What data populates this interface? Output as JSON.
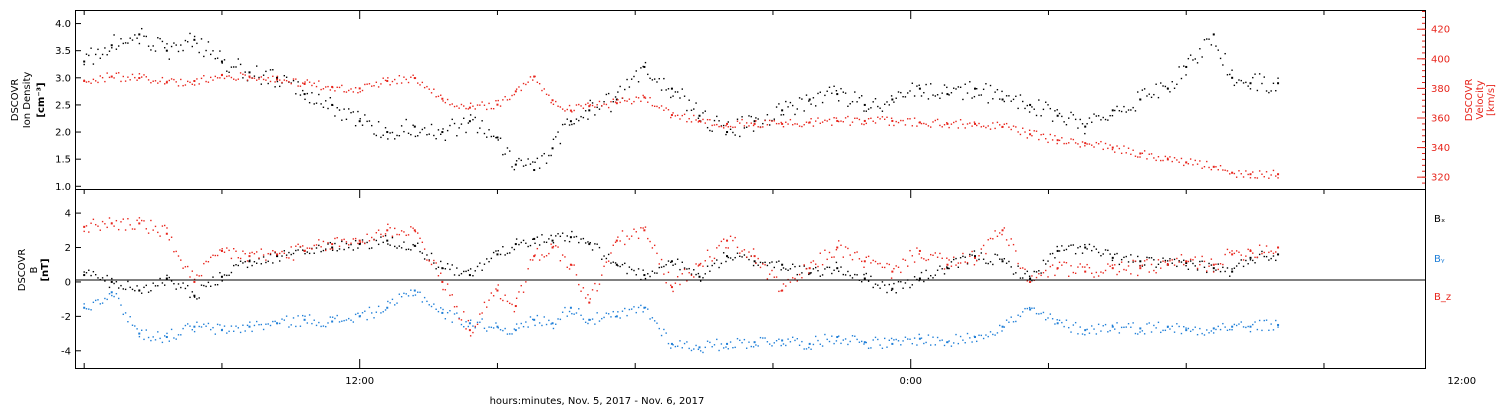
{
  "colors": {
    "frame": "#000000",
    "black_series": "#000000",
    "red_series": "#e8251c",
    "blue_series": "#1f7fd8"
  },
  "x_axis": {
    "caption": "hours:minutes, Nov.  5, 2017 - Nov.  6, 2017",
    "tick_labels": [
      "12:00",
      "0:00",
      "12:00"
    ],
    "tick_hours": [
      12,
      24,
      36
    ],
    "range_hours": [
      5.8,
      35.2
    ]
  },
  "chart_data": [
    {
      "type": "scatter",
      "panel": "top",
      "ylabel_lines": [
        "DSCOVR",
        "Ion Density"
      ],
      "ylabel_unit": "[cm⁻³]",
      "yticks": [
        "1.0",
        "1.5",
        "2.0",
        "2.5",
        "3.0",
        "3.5",
        "4.0"
      ],
      "ylim": [
        0.95,
        4.25
      ],
      "right_axis": {
        "ylabel_lines": [
          "DSCOVR",
          "Velocity"
        ],
        "ylabel_unit": "[km/s]",
        "yticks": [
          "320",
          "340",
          "360",
          "380",
          "400",
          "420"
        ],
        "ylim": [
          312,
          433
        ]
      },
      "series": [
        {
          "color": "black",
          "axis": "left",
          "x": [
            6.0,
            6.6,
            7.2,
            7.8,
            8.4,
            9.0,
            9.6,
            10.2,
            10.8,
            11.4,
            12.0,
            12.6,
            13.2,
            13.8,
            14.4,
            15.0,
            15.4,
            15.8,
            16.2,
            16.6,
            17.0,
            17.6,
            18.2,
            18.8,
            19.4,
            20.0,
            20.6,
            21.2,
            21.8,
            22.4,
            23.0,
            23.6,
            24.2,
            24.8,
            25.4,
            26.0,
            26.6,
            27.2,
            27.8,
            28.4,
            29.0,
            29.6,
            30.0,
            30.6,
            31.0,
            31.4,
            32.0
          ],
          "y": [
            3.3,
            3.6,
            3.8,
            3.5,
            3.7,
            3.3,
            3.1,
            3.0,
            2.7,
            2.5,
            2.2,
            2.0,
            2.1,
            2.0,
            2.2,
            1.9,
            1.4,
            1.3,
            1.7,
            2.2,
            2.4,
            2.6,
            3.2,
            2.8,
            2.3,
            2.0,
            2.2,
            2.4,
            2.6,
            2.7,
            2.5,
            2.6,
            2.8,
            2.7,
            2.8,
            2.6,
            2.5,
            2.3,
            2.1,
            2.4,
            2.6,
            2.8,
            3.2,
            3.8,
            3.0,
            2.9,
            2.9
          ]
        },
        {
          "color": "red",
          "axis": "right",
          "x": [
            6.0,
            6.6,
            7.2,
            7.8,
            8.4,
            9.0,
            9.6,
            10.2,
            10.8,
            11.4,
            12.0,
            12.6,
            13.2,
            13.8,
            14.4,
            15.0,
            15.4,
            15.8,
            16.2,
            16.6,
            17.0,
            17.6,
            18.2,
            18.8,
            19.4,
            20.0,
            20.6,
            21.2,
            21.8,
            22.4,
            23.0,
            23.6,
            24.2,
            24.8,
            25.4,
            26.0,
            26.6,
            27.2,
            27.8,
            28.4,
            29.0,
            29.6,
            30.0,
            30.6,
            31.0,
            31.4,
            32.0
          ],
          "y": [
            385,
            388,
            387,
            384,
            385,
            389,
            388,
            386,
            383,
            381,
            380,
            385,
            387,
            373,
            367,
            369,
            378,
            388,
            372,
            365,
            368,
            370,
            374,
            362,
            358,
            356,
            356,
            356,
            357,
            358,
            358,
            358,
            357,
            356,
            356,
            354,
            349,
            345,
            343,
            340,
            336,
            332,
            330,
            327,
            323,
            322,
            322
          ]
        }
      ]
    },
    {
      "type": "scatter",
      "panel": "bottom",
      "ylabel_lines": [
        "DSCOVR",
        "B"
      ],
      "ylabel_unit": "[nT]",
      "yticks": [
        "-4",
        "-2",
        "0",
        "2",
        "4"
      ],
      "ylim": [
        -5.0,
        5.4
      ],
      "zero_line": true,
      "legend_position": "right",
      "series": [
        {
          "name": "Bₓ",
          "color": "black",
          "x": [
            6.0,
            6.6,
            7.2,
            7.8,
            8.4,
            9.0,
            9.6,
            10.2,
            10.8,
            11.4,
            12.0,
            12.6,
            13.2,
            13.8,
            14.4,
            15.0,
            15.4,
            15.8,
            16.2,
            16.6,
            17.0,
            17.6,
            18.2,
            18.8,
            19.4,
            20.0,
            20.6,
            21.2,
            21.8,
            22.4,
            23.0,
            23.6,
            24.2,
            24.8,
            25.4,
            26.0,
            26.6,
            27.2,
            27.8,
            28.4,
            29.0,
            29.6,
            30.0,
            30.6,
            31.0,
            31.4,
            32.0
          ],
          "y": [
            0.4,
            0.0,
            -0.5,
            0.2,
            -0.8,
            0.3,
            1.2,
            1.5,
            1.8,
            2.0,
            2.2,
            2.4,
            2.1,
            0.8,
            0.4,
            1.6,
            2.2,
            2.5,
            2.4,
            2.6,
            2.2,
            1.0,
            0.4,
            1.2,
            0.3,
            1.5,
            1.2,
            1.0,
            0.5,
            0.8,
            0.2,
            -0.4,
            0.2,
            0.8,
            1.5,
            1.2,
            0.2,
            1.8,
            2.0,
            1.4,
            1.2,
            1.0,
            1.1,
            0.8,
            0.6,
            1.4,
            1.6
          ]
        },
        {
          "name": "Bᵧ",
          "color": "blue",
          "x": [
            6.0,
            6.6,
            7.2,
            7.8,
            8.4,
            9.0,
            9.6,
            10.2,
            10.8,
            11.4,
            12.0,
            12.6,
            13.2,
            13.8,
            14.4,
            15.0,
            15.4,
            15.8,
            16.2,
            16.6,
            17.0,
            17.6,
            18.2,
            18.8,
            19.4,
            20.0,
            20.6,
            21.2,
            21.8,
            22.4,
            23.0,
            23.6,
            24.2,
            24.8,
            25.4,
            26.0,
            26.6,
            27.2,
            27.8,
            28.4,
            29.0,
            29.6,
            30.0,
            30.6,
            31.0,
            31.4,
            32.0
          ],
          "y": [
            -1.5,
            -0.6,
            -3.0,
            -3.2,
            -2.6,
            -2.8,
            -2.6,
            -2.4,
            -2.2,
            -2.3,
            -2.0,
            -1.5,
            -0.5,
            -1.8,
            -2.4,
            -2.6,
            -2.8,
            -2.2,
            -2.4,
            -1.5,
            -2.2,
            -2.0,
            -1.5,
            -3.6,
            -3.8,
            -3.6,
            -3.5,
            -3.4,
            -3.6,
            -3.2,
            -3.5,
            -3.6,
            -3.3,
            -3.5,
            -3.2,
            -2.6,
            -1.6,
            -2.4,
            -2.8,
            -2.6,
            -2.7,
            -2.6,
            -2.8,
            -2.7,
            -2.6,
            -2.6,
            -2.5
          ]
        },
        {
          "name": "B_z",
          "color": "red",
          "x": [
            6.0,
            6.6,
            7.2,
            7.8,
            8.4,
            9.0,
            9.6,
            10.2,
            10.8,
            11.4,
            12.0,
            12.6,
            13.2,
            13.8,
            14.4,
            15.0,
            15.4,
            15.8,
            16.2,
            16.6,
            17.0,
            17.6,
            18.2,
            18.8,
            19.4,
            20.0,
            20.6,
            21.2,
            21.8,
            22.4,
            23.0,
            23.6,
            24.2,
            24.8,
            25.4,
            26.0,
            26.6,
            27.2,
            27.8,
            28.4,
            29.0,
            29.6,
            30.0,
            30.6,
            31.0,
            31.4,
            32.0
          ],
          "y": [
            3.2,
            3.4,
            3.4,
            2.8,
            0.0,
            1.8,
            1.5,
            1.6,
            1.8,
            2.2,
            2.4,
            3.0,
            3.0,
            0.0,
            -2.8,
            -0.5,
            -1.4,
            1.5,
            2.0,
            1.0,
            -1.2,
            2.4,
            3.0,
            -0.3,
            1.0,
            2.4,
            1.5,
            -0.5,
            0.8,
            2.0,
            1.2,
            0.6,
            1.8,
            1.0,
            1.4,
            3.0,
            0.0,
            0.8,
            0.6,
            0.8,
            0.8,
            1.0,
            1.2,
            1.0,
            1.6,
            1.8,
            2.0
          ]
        }
      ]
    }
  ]
}
